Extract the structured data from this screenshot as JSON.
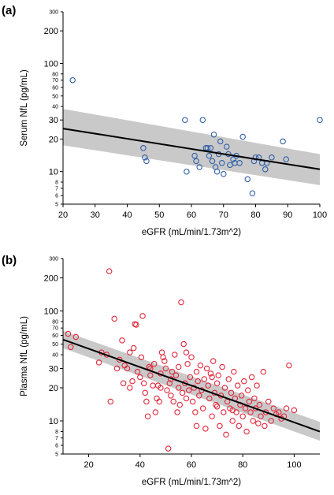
{
  "chart_data": [
    {
      "type": "scatter",
      "panel_label": "(a)",
      "xlabel": "eGFR (mL/min/1.73m^2)",
      "ylabel": "Serum NfL (pg/mL)",
      "xlim": [
        20,
        100
      ],
      "ylim": [
        5,
        300
      ],
      "yscale": "log",
      "x_ticks": [
        "20",
        "30",
        "40",
        "50",
        "60",
        "70",
        "80",
        "90",
        "100"
      ],
      "y_ticks_major": [
        {
          "v": 10,
          "label": "10"
        },
        {
          "v": 20,
          "label": "20"
        },
        {
          "v": 30,
          "label": "30"
        },
        {
          "v": 100,
          "label": "100"
        },
        {
          "v": 200,
          "label": "200"
        }
      ],
      "y_ticks_minor": [
        {
          "v": 5,
          "label": "5"
        },
        {
          "v": 6,
          "label": "6"
        },
        {
          "v": 7,
          "label": "7"
        },
        {
          "v": 8,
          "label": "8"
        },
        {
          "v": 40,
          "label": "40"
        },
        {
          "v": 50,
          "label": "50"
        },
        {
          "v": 60,
          "label": "60"
        },
        {
          "v": 70,
          "label": "70"
        },
        {
          "v": 80,
          "label": "80"
        },
        {
          "v": 300,
          "label": "300"
        }
      ],
      "marker_color": "#2f5fa8",
      "fit_line": {
        "x": [
          20,
          100
        ],
        "y": [
          25,
          10.5
        ]
      },
      "ci_band": {
        "x": [
          20,
          100
        ],
        "lower": [
          17.5,
          7.5
        ],
        "upper": [
          38,
          14.5
        ]
      },
      "points": [
        {
          "x": 23,
          "y": 70
        },
        {
          "x": 45,
          "y": 16.5
        },
        {
          "x": 45.5,
          "y": 13.5
        },
        {
          "x": 46,
          "y": 12.5
        },
        {
          "x": 58,
          "y": 30
        },
        {
          "x": 58.5,
          "y": 10
        },
        {
          "x": 61,
          "y": 14
        },
        {
          "x": 61.5,
          "y": 12.5
        },
        {
          "x": 62.5,
          "y": 11
        },
        {
          "x": 63.5,
          "y": 30
        },
        {
          "x": 64.5,
          "y": 16.5
        },
        {
          "x": 65,
          "y": 16.5
        },
        {
          "x": 65.5,
          "y": 14
        },
        {
          "x": 66,
          "y": 16.5
        },
        {
          "x": 66.5,
          "y": 12.5
        },
        {
          "x": 67,
          "y": 22
        },
        {
          "x": 67.5,
          "y": 11
        },
        {
          "x": 68,
          "y": 10
        },
        {
          "x": 68.5,
          "y": 14.5
        },
        {
          "x": 69,
          "y": 19
        },
        {
          "x": 69.5,
          "y": 12
        },
        {
          "x": 70,
          "y": 9.5
        },
        {
          "x": 71,
          "y": 17
        },
        {
          "x": 71.5,
          "y": 14.5
        },
        {
          "x": 72,
          "y": 11.5
        },
        {
          "x": 73,
          "y": 13
        },
        {
          "x": 73.5,
          "y": 12
        },
        {
          "x": 74,
          "y": 14
        },
        {
          "x": 75,
          "y": 12
        },
        {
          "x": 76,
          "y": 21
        },
        {
          "x": 77.5,
          "y": 8.5
        },
        {
          "x": 79,
          "y": 6.3
        },
        {
          "x": 79.5,
          "y": 12.5
        },
        {
          "x": 80,
          "y": 13.5
        },
        {
          "x": 81,
          "y": 13.5
        },
        {
          "x": 82,
          "y": 12
        },
        {
          "x": 83,
          "y": 10.5
        },
        {
          "x": 83.5,
          "y": 12
        },
        {
          "x": 85,
          "y": 13.5
        },
        {
          "x": 88.5,
          "y": 19
        },
        {
          "x": 89.5,
          "y": 13
        },
        {
          "x": 100,
          "y": 30
        }
      ]
    },
    {
      "type": "scatter",
      "panel_label": "(b)",
      "xlabel": "eGFR (mL/min/1.73m^2)",
      "ylabel": "Plasma NfL (pg/mL)",
      "xlim": [
        10,
        110
      ],
      "ylim": [
        5,
        300
      ],
      "yscale": "log",
      "x_ticks": [
        "20",
        "40",
        "60",
        "80",
        "100"
      ],
      "y_ticks_major": [
        {
          "v": 10,
          "label": "10"
        },
        {
          "v": 20,
          "label": "20"
        },
        {
          "v": 30,
          "label": "30"
        },
        {
          "v": 100,
          "label": "100"
        },
        {
          "v": 200,
          "label": "200"
        }
      ],
      "y_ticks_minor": [
        {
          "v": 5,
          "label": "5"
        },
        {
          "v": 6,
          "label": "6"
        },
        {
          "v": 7,
          "label": "7"
        },
        {
          "v": 8,
          "label": "8"
        },
        {
          "v": 40,
          "label": "40"
        },
        {
          "v": 50,
          "label": "50"
        },
        {
          "v": 60,
          "label": "60"
        },
        {
          "v": 70,
          "label": "70"
        },
        {
          "v": 80,
          "label": "80"
        },
        {
          "v": 300,
          "label": "300"
        }
      ],
      "marker_color": "#e0283c",
      "fit_line": {
        "x": [
          10,
          110
        ],
        "y": [
          55,
          8
        ]
      },
      "ci_band": {
        "x": [
          10,
          110
        ],
        "lower": [
          46,
          6.6
        ],
        "upper": [
          66,
          9.8
        ]
      },
      "points": [
        {
          "x": 12,
          "y": 62
        },
        {
          "x": 13,
          "y": 47
        },
        {
          "x": 15,
          "y": 58
        },
        {
          "x": 24,
          "y": 34
        },
        {
          "x": 25,
          "y": 42
        },
        {
          "x": 27,
          "y": 40
        },
        {
          "x": 28,
          "y": 230
        },
        {
          "x": 28.5,
          "y": 15
        },
        {
          "x": 30,
          "y": 85
        },
        {
          "x": 31,
          "y": 30
        },
        {
          "x": 32,
          "y": 36
        },
        {
          "x": 33,
          "y": 54
        },
        {
          "x": 33.5,
          "y": 22
        },
        {
          "x": 34,
          "y": 32
        },
        {
          "x": 35,
          "y": 30
        },
        {
          "x": 36,
          "y": 42
        },
        {
          "x": 37,
          "y": 23
        },
        {
          "x": 37.5,
          "y": 46
        },
        {
          "x": 38,
          "y": 76
        },
        {
          "x": 38.5,
          "y": 75
        },
        {
          "x": 39,
          "y": 28
        },
        {
          "x": 40,
          "y": 25
        },
        {
          "x": 40.5,
          "y": 38
        },
        {
          "x": 41,
          "y": 90
        },
        {
          "x": 41.5,
          "y": 22
        },
        {
          "x": 42,
          "y": 18
        },
        {
          "x": 42.5,
          "y": 15
        },
        {
          "x": 43,
          "y": 11
        },
        {
          "x": 43.5,
          "y": 31
        },
        {
          "x": 44,
          "y": 26
        },
        {
          "x": 45,
          "y": 21
        },
        {
          "x": 45.5,
          "y": 33
        },
        {
          "x": 46,
          "y": 12
        },
        {
          "x": 46.5,
          "y": 16
        },
        {
          "x": 47,
          "y": 21
        },
        {
          "x": 47.5,
          "y": 15
        },
        {
          "x": 48,
          "y": 20
        },
        {
          "x": 48.5,
          "y": 42
        },
        {
          "x": 49,
          "y": 38
        },
        {
          "x": 49.5,
          "y": 35
        },
        {
          "x": 50,
          "y": 30
        },
        {
          "x": 50.5,
          "y": 19
        },
        {
          "x": 51,
          "y": 5.6
        },
        {
          "x": 51.5,
          "y": 22
        },
        {
          "x": 52,
          "y": 17
        },
        {
          "x": 52.5,
          "y": 28
        },
        {
          "x": 53,
          "y": 15
        },
        {
          "x": 53.5,
          "y": 40
        },
        {
          "x": 54,
          "y": 26
        },
        {
          "x": 54.5,
          "y": 12
        },
        {
          "x": 55,
          "y": 31
        },
        {
          "x": 55.5,
          "y": 14
        },
        {
          "x": 56,
          "y": 120
        },
        {
          "x": 56.5,
          "y": 18
        },
        {
          "x": 57,
          "y": 50
        },
        {
          "x": 57.5,
          "y": 22
        },
        {
          "x": 58,
          "y": 16
        },
        {
          "x": 58.5,
          "y": 33
        },
        {
          "x": 59,
          "y": 19
        },
        {
          "x": 59.5,
          "y": 25
        },
        {
          "x": 60,
          "y": 38
        },
        {
          "x": 60.5,
          "y": 15
        },
        {
          "x": 61,
          "y": 20
        },
        {
          "x": 61.5,
          "y": 12
        },
        {
          "x": 62,
          "y": 28
        },
        {
          "x": 62.5,
          "y": 23
        },
        {
          "x": 63,
          "y": 17
        },
        {
          "x": 63.5,
          "y": 32
        },
        {
          "x": 64,
          "y": 19
        },
        {
          "x": 64.5,
          "y": 13
        },
        {
          "x": 65,
          "y": 24
        },
        {
          "x": 65.5,
          "y": 8.5
        },
        {
          "x": 66,
          "y": 30
        },
        {
          "x": 66.5,
          "y": 21
        },
        {
          "x": 67,
          "y": 16
        },
        {
          "x": 67.5,
          "y": 27
        },
        {
          "x": 68,
          "y": 11
        },
        {
          "x": 68.5,
          "y": 35
        },
        {
          "x": 69,
          "y": 18
        },
        {
          "x": 69.5,
          "y": 14
        },
        {
          "x": 70,
          "y": 22
        },
        {
          "x": 70.5,
          "y": 26
        },
        {
          "x": 71,
          "y": 9
        },
        {
          "x": 71.5,
          "y": 17
        },
        {
          "x": 72,
          "y": 31
        },
        {
          "x": 72.5,
          "y": 12
        },
        {
          "x": 73,
          "y": 20
        },
        {
          "x": 73.5,
          "y": 7.5
        },
        {
          "x": 74,
          "y": 15
        },
        {
          "x": 74.5,
          "y": 24
        },
        {
          "x": 75,
          "y": 13
        },
        {
          "x": 75.5,
          "y": 18
        },
        {
          "x": 76,
          "y": 10
        },
        {
          "x": 76.5,
          "y": 28
        },
        {
          "x": 77,
          "y": 16
        },
        {
          "x": 77.5,
          "y": 12
        },
        {
          "x": 78,
          "y": 21
        },
        {
          "x": 78.5,
          "y": 9
        },
        {
          "x": 79,
          "y": 14
        },
        {
          "x": 79.5,
          "y": 17
        },
        {
          "x": 80,
          "y": 11
        },
        {
          "x": 80.5,
          "y": 23
        },
        {
          "x": 81,
          "y": 13
        },
        {
          "x": 81.5,
          "y": 8
        },
        {
          "x": 82,
          "y": 19
        },
        {
          "x": 82.5,
          "y": 15
        },
        {
          "x": 83,
          "y": 12
        },
        {
          "x": 83.5,
          "y": 25
        },
        {
          "x": 84,
          "y": 10
        },
        {
          "x": 84.5,
          "y": 16
        },
        {
          "x": 85,
          "y": 13
        },
        {
          "x": 85.5,
          "y": 21
        },
        {
          "x": 86,
          "y": 9.5
        },
        {
          "x": 86.5,
          "y": 14
        },
        {
          "x": 87,
          "y": 11
        },
        {
          "x": 88,
          "y": 28
        },
        {
          "x": 88.5,
          "y": 9
        },
        {
          "x": 89,
          "y": 12
        },
        {
          "x": 90,
          "y": 15
        },
        {
          "x": 91,
          "y": 10
        },
        {
          "x": 92,
          "y": 13
        },
        {
          "x": 93,
          "y": 11.5
        },
        {
          "x": 94,
          "y": 12
        },
        {
          "x": 95,
          "y": 10.5
        },
        {
          "x": 96,
          "y": 11
        },
        {
          "x": 97,
          "y": 13
        },
        {
          "x": 98,
          "y": 32
        },
        {
          "x": 100,
          "y": 12.5
        },
        {
          "x": 48,
          "y": 27
        },
        {
          "x": 58,
          "y": 42
        },
        {
          "x": 62,
          "y": 9
        },
        {
          "x": 68,
          "y": 25
        },
        {
          "x": 70,
          "y": 13.5
        },
        {
          "x": 76,
          "y": 12.5
        },
        {
          "x": 52,
          "y": 24
        },
        {
          "x": 55,
          "y": 20
        },
        {
          "x": 44,
          "y": 30
        },
        {
          "x": 36,
          "y": 20
        }
      ]
    }
  ]
}
